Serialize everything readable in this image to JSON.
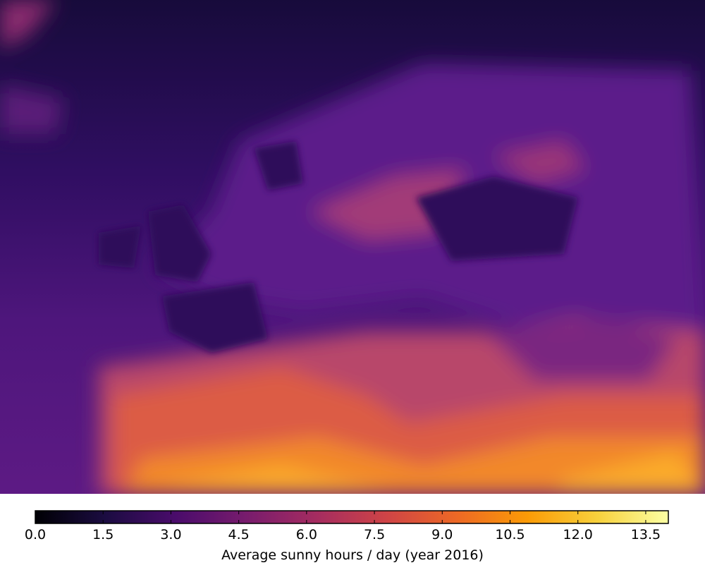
{
  "chart_data": {
    "type": "heatmap",
    "colormap": "inferno",
    "colorbar_label": "Average sunny hours / day (year 2016)",
    "clim": [
      0,
      14
    ],
    "cticks": [
      {
        "value": 0,
        "label": "0.0"
      },
      1.5,
      {
        "value": 3,
        "label": "3.0"
      },
      4.5,
      {
        "value": 6,
        "label": "6.0"
      },
      7.5,
      {
        "value": 9,
        "label": "9.0"
      },
      10.5,
      {
        "value": 12,
        "label": "12.0"
      },
      13.5
    ]
  }
}
